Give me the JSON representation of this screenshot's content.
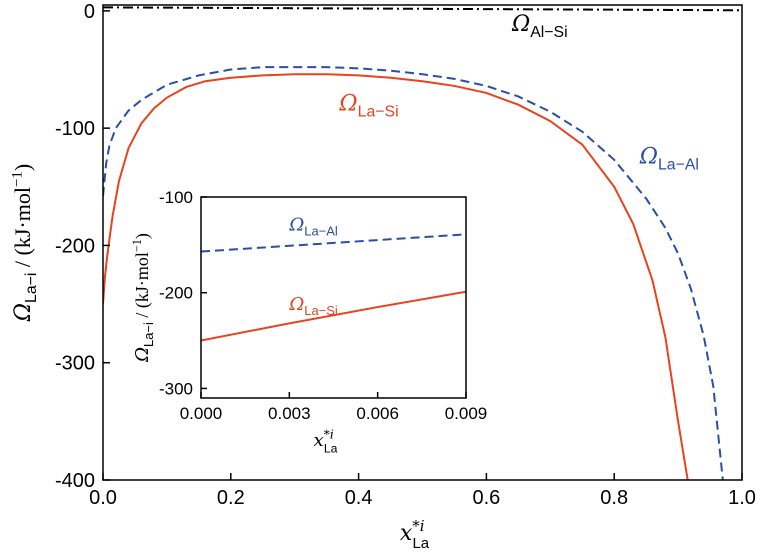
{
  "chart_data": [
    {
      "type": "line",
      "xlabel": "x*iLa",
      "ylabel": "ΩLa−i / (kJ·mol−1)",
      "xlim": [
        0.0,
        1.0
      ],
      "ylim": [
        -400,
        5
      ],
      "xticks": [
        "0.0",
        "0.2",
        "0.4",
        "0.6",
        "0.8",
        "1.0"
      ],
      "yticks": [
        "0",
        "-100",
        "-200",
        "-300",
        "-400"
      ],
      "series": [
        {
          "name": "ΩAl−Si",
          "color": "#000000",
          "style": "dash-dot",
          "x": [
            0.0,
            0.2,
            0.4,
            0.6,
            0.8,
            1.0
          ],
          "y": [
            3,
            2.5,
            2,
            1.5,
            1,
            0.5
          ]
        },
        {
          "name": "ΩLa−Al",
          "color": "#2b4ea8",
          "style": "dashed",
          "x": [
            0.0,
            0.005,
            0.01,
            0.02,
            0.04,
            0.06,
            0.1,
            0.15,
            0.2,
            0.25,
            0.3,
            0.35,
            0.4,
            0.45,
            0.5,
            0.55,
            0.6,
            0.65,
            0.7,
            0.75,
            0.8,
            0.85,
            0.88,
            0.9,
            0.92,
            0.94,
            0.955,
            0.97
          ],
          "y": [
            -158,
            -130,
            -115,
            -100,
            -85,
            -76,
            -63,
            -55,
            -50,
            -48,
            -48,
            -48,
            -49,
            -51,
            -54,
            -58,
            -64,
            -73,
            -86,
            -103,
            -127,
            -160,
            -185,
            -207,
            -237,
            -277,
            -320,
            -400
          ]
        },
        {
          "name": "ΩLa−Si",
          "color": "#e8431e",
          "style": "solid",
          "x": [
            0.0,
            0.003,
            0.006,
            0.009,
            0.015,
            0.025,
            0.04,
            0.06,
            0.08,
            0.1,
            0.13,
            0.16,
            0.2,
            0.25,
            0.3,
            0.35,
            0.4,
            0.45,
            0.5,
            0.55,
            0.6,
            0.65,
            0.7,
            0.75,
            0.8,
            0.83,
            0.86,
            0.88,
            0.9,
            0.915
          ],
          "y": [
            -250,
            -227,
            -212,
            -199,
            -175,
            -145,
            -117,
            -96,
            -83,
            -74,
            -65,
            -60,
            -57,
            -55,
            -54,
            -54,
            -55,
            -57,
            -60,
            -64,
            -70,
            -80,
            -94,
            -114,
            -150,
            -182,
            -230,
            -278,
            -350,
            -400
          ]
        }
      ],
      "annotations": [
        {
          "name": "ΩAl−Si",
          "x": 0.64,
          "y": -17
        },
        {
          "name": "ΩLa−Si",
          "x": 0.37,
          "y": -85
        },
        {
          "name": "ΩLa−Al",
          "x": 0.84,
          "y": -130
        }
      ]
    },
    {
      "type": "line",
      "role": "inset",
      "xlabel": "x*iLa",
      "ylabel": "ΩLa−i / (kJ·mol−1)",
      "xlim": [
        0.0,
        0.009
      ],
      "ylim": [
        -310,
        -100
      ],
      "xticks": [
        "0.000",
        "0.003",
        "0.006",
        "0.009"
      ],
      "yticks": [
        "-100",
        "-200",
        "-300"
      ],
      "series": [
        {
          "name": "ΩLa−Al",
          "color": "#2b4ea8",
          "style": "dashed",
          "x": [
            0.0,
            0.003,
            0.006,
            0.009
          ],
          "y": [
            -157,
            -151,
            -145,
            -139
          ]
        },
        {
          "name": "ΩLa−Si",
          "color": "#e8431e",
          "style": "solid",
          "x": [
            0.0,
            0.003,
            0.006,
            0.009
          ],
          "y": [
            -250,
            -232,
            -215,
            -199
          ]
        }
      ],
      "annotations": [
        {
          "name": "ΩLa−Al",
          "x": 0.003,
          "y": -135
        },
        {
          "name": "ΩLa−Si",
          "x": 0.003,
          "y": -218
        }
      ]
    }
  ]
}
